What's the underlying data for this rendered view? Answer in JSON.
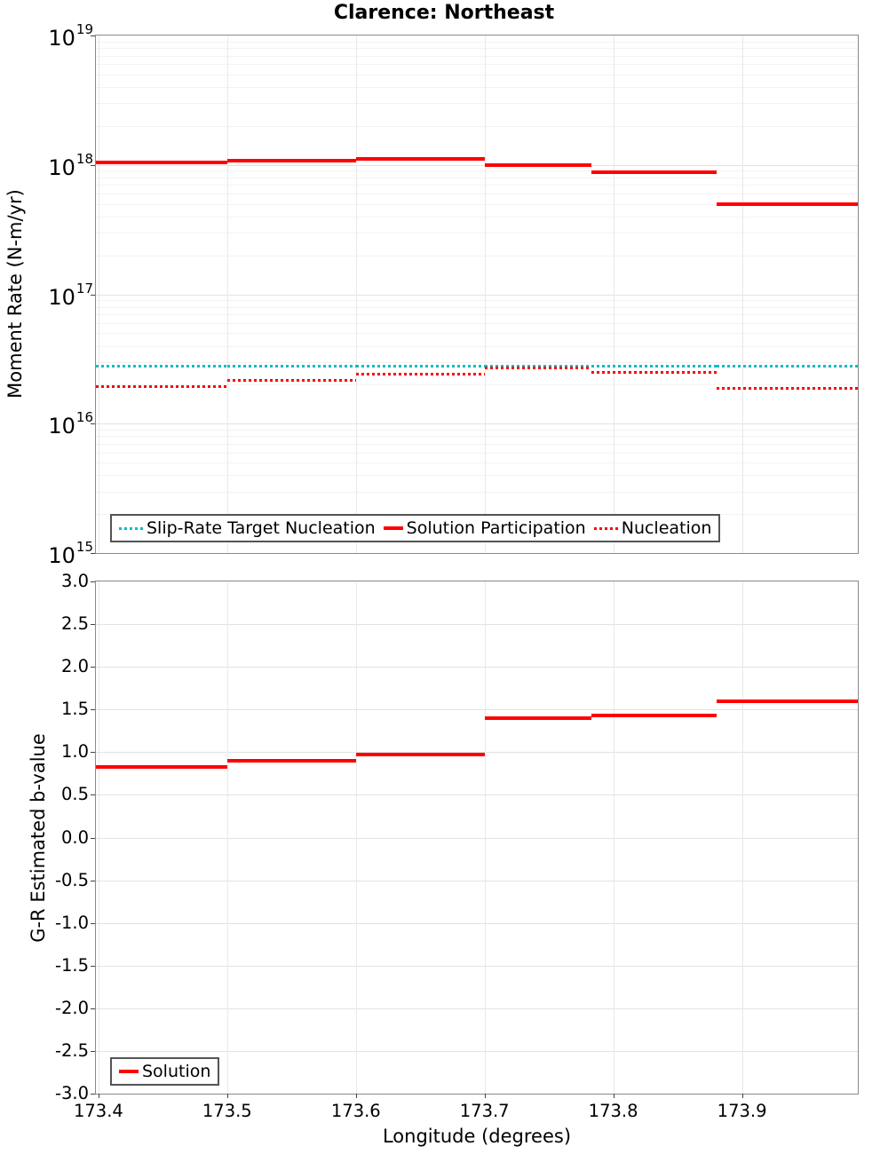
{
  "title": "Clarence: Northeast",
  "chart_data": [
    {
      "type": "line",
      "subtype": "step",
      "panel": "top",
      "title": "Clarence: Northeast",
      "ylabel": "Moment Rate (N-m/yr)",
      "yscale": "log",
      "ylim": [
        1000000000000000.0,
        1e+19
      ],
      "ytick_exponents": [
        19,
        18,
        17,
        16,
        15
      ],
      "ytick_base": "10",
      "xlim": [
        173.398,
        173.99
      ],
      "xticks": {
        "values": [
          173.4,
          173.5,
          173.6,
          173.7,
          173.8,
          173.9
        ],
        "labels": [
          "173.4",
          "173.5",
          "173.6",
          "173.7",
          "173.8",
          "173.9"
        ]
      },
      "x_edges": [
        173.398,
        173.5,
        173.6,
        173.7,
        173.783,
        173.88,
        173.99
      ],
      "grid": true,
      "legend_position": "bottom-left-inside",
      "series": [
        {
          "name": "Slip-Rate Target Nucleation",
          "color": "#00BEC4",
          "line_style": "dotted",
          "values": [
            2.8e+16,
            2.8e+16,
            2.8e+16,
            2.8e+16,
            2.8e+16,
            2.8e+16
          ]
        },
        {
          "name": "Solution Participation",
          "color": "#FF0000",
          "line_style": "solid",
          "values": [
            1.04e+18,
            1.08e+18,
            1.11e+18,
            1e+18,
            8.8e+17,
            5e+17
          ]
        },
        {
          "name": "Nucleation",
          "color": "#FF0000",
          "line_style": "dotted",
          "values": [
            1.95e+16,
            2.15e+16,
            2.4e+16,
            2.7e+16,
            2.5e+16,
            1.88e+16
          ]
        }
      ]
    },
    {
      "type": "line",
      "subtype": "step",
      "panel": "bottom",
      "ylabel": "G-R Estimated b-value",
      "xlabel": "Longitude (degrees)",
      "yscale": "linear",
      "ylim": [
        -3.0,
        3.0
      ],
      "yticks": {
        "values": [
          3.0,
          2.5,
          2.0,
          1.5,
          1.0,
          0.5,
          0.0,
          -0.5,
          -1.0,
          -1.5,
          -2.0,
          -2.5,
          -3.0
        ],
        "labels": [
          "3.0",
          "2.5",
          "2.0",
          "1.5",
          "1.0",
          "0.5",
          "0.0",
          "-0.5",
          "-1.0",
          "-1.5",
          "-2.0",
          "-2.5",
          "-3.0"
        ]
      },
      "xlim": [
        173.398,
        173.99
      ],
      "xticks": {
        "values": [
          173.4,
          173.5,
          173.6,
          173.7,
          173.8,
          173.9
        ],
        "labels": [
          "173.4",
          "173.5",
          "173.6",
          "173.7",
          "173.8",
          "173.9"
        ]
      },
      "x_edges": [
        173.398,
        173.5,
        173.6,
        173.7,
        173.783,
        173.88,
        173.99
      ],
      "grid": true,
      "legend_position": "bottom-left-inside",
      "series": [
        {
          "name": "Solution",
          "color": "#FF0000",
          "line_style": "solid",
          "values": [
            0.83,
            0.9,
            0.97,
            1.4,
            1.43,
            1.6
          ]
        }
      ]
    }
  ]
}
